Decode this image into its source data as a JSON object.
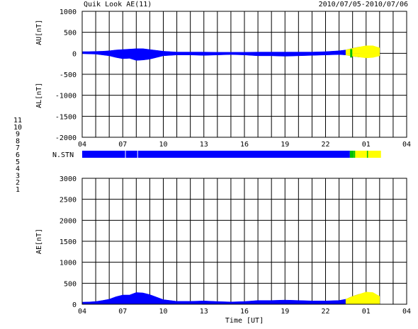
{
  "header": {
    "title": "Quik Look AE(11)",
    "date_range": "2010/07/05-2010/07/06"
  },
  "colors": {
    "series_main": "#0000ff",
    "series_recent": "#ffff00",
    "station_change": "#00c000",
    "axis": "#000000"
  },
  "station_legend": {
    "items": [
      {
        "label": "11",
        "color": "#00c8c8"
      },
      {
        "label": "10",
        "color": "#ff00ff"
      },
      {
        "label": "9",
        "color": "#0000ff"
      },
      {
        "label": "8",
        "color": "#ffff00"
      },
      {
        "label": "7",
        "color": "#00c000"
      },
      {
        "label": "6",
        "color": "#ff0000"
      },
      {
        "label": "5",
        "color": "#c8c8c8"
      },
      {
        "label": "4",
        "color": "#c8c8c8"
      },
      {
        "label": "3",
        "color": "#00c8c8"
      },
      {
        "label": "2",
        "color": "#ff00ff"
      },
      {
        "label": "1",
        "color": "#0000ff"
      }
    ]
  },
  "chart_data": [
    {
      "type": "area",
      "ylabel_top": "AU[nT]",
      "ylabel_bottom": "AL[nT]",
      "ylim": [
        -2000,
        1000
      ],
      "yticks": [
        1000,
        500,
        0,
        -500,
        -1000,
        -1500,
        -2000
      ],
      "xlim": [
        4,
        28
      ],
      "x_tick_labels": [
        "04",
        "07",
        "10",
        "13",
        "16",
        "19",
        "22",
        "01",
        "04"
      ],
      "grid": true,
      "x": [
        4,
        4.5,
        5,
        5.5,
        6,
        6.5,
        7,
        7.5,
        8,
        8.5,
        9,
        9.5,
        10,
        10.5,
        11,
        12,
        13,
        14,
        15,
        16,
        17,
        18,
        19,
        20,
        21,
        22,
        23,
        23.5,
        24,
        24.5,
        25,
        25.5,
        26
      ],
      "au": [
        40,
        40,
        45,
        50,
        60,
        80,
        90,
        100,
        110,
        110,
        90,
        70,
        50,
        40,
        30,
        30,
        30,
        25,
        25,
        25,
        30,
        30,
        30,
        30,
        30,
        40,
        60,
        80,
        120,
        150,
        180,
        180,
        130
      ],
      "al": [
        -10,
        -15,
        -20,
        -40,
        -60,
        -100,
        -130,
        -120,
        -170,
        -160,
        -140,
        -100,
        -60,
        -50,
        -40,
        -40,
        -50,
        -40,
        -30,
        -40,
        -60,
        -60,
        -70,
        -60,
        -50,
        -40,
        -30,
        -40,
        -70,
        -90,
        -110,
        -100,
        -60
      ],
      "recent_from_x": 23.9
    },
    {
      "type": "bar",
      "label": "N.STN",
      "segments": [
        {
          "x0": 4,
          "x1": 23.8,
          "station_count": 9
        },
        {
          "x0": 23.8,
          "x1": 24.1,
          "station_count": 7
        },
        {
          "x0": 24.1,
          "x1": 26.1,
          "station_count": 8
        }
      ],
      "gaps_at_x": [
        7.2,
        8.1
      ],
      "marks_at_x": [
        24.15,
        25.1
      ]
    },
    {
      "type": "area",
      "ylabel": "AE[nT]",
      "xlabel": "Time [UT]",
      "ylim": [
        0,
        3000
      ],
      "yticks": [
        3000,
        2500,
        2000,
        1500,
        1000,
        500,
        0
      ],
      "xlim": [
        4,
        28
      ],
      "x_tick_labels": [
        "04",
        "07",
        "10",
        "13",
        "16",
        "19",
        "22",
        "01",
        "04"
      ],
      "grid": true,
      "x": [
        4,
        4.5,
        5,
        5.5,
        6,
        6.5,
        7,
        7.5,
        8,
        8.5,
        9,
        9.5,
        10,
        10.5,
        11,
        12,
        13,
        14,
        15,
        16,
        17,
        18,
        19,
        20,
        21,
        22,
        23,
        23.5,
        24,
        24.5,
        25,
        25.5,
        26
      ],
      "values": [
        50,
        55,
        65,
        90,
        120,
        180,
        220,
        220,
        280,
        270,
        230,
        170,
        110,
        90,
        70,
        70,
        80,
        65,
        55,
        65,
        90,
        90,
        100,
        90,
        80,
        80,
        90,
        120,
        190,
        240,
        290,
        280,
        190
      ],
      "recent_from_x": 23.9
    }
  ]
}
